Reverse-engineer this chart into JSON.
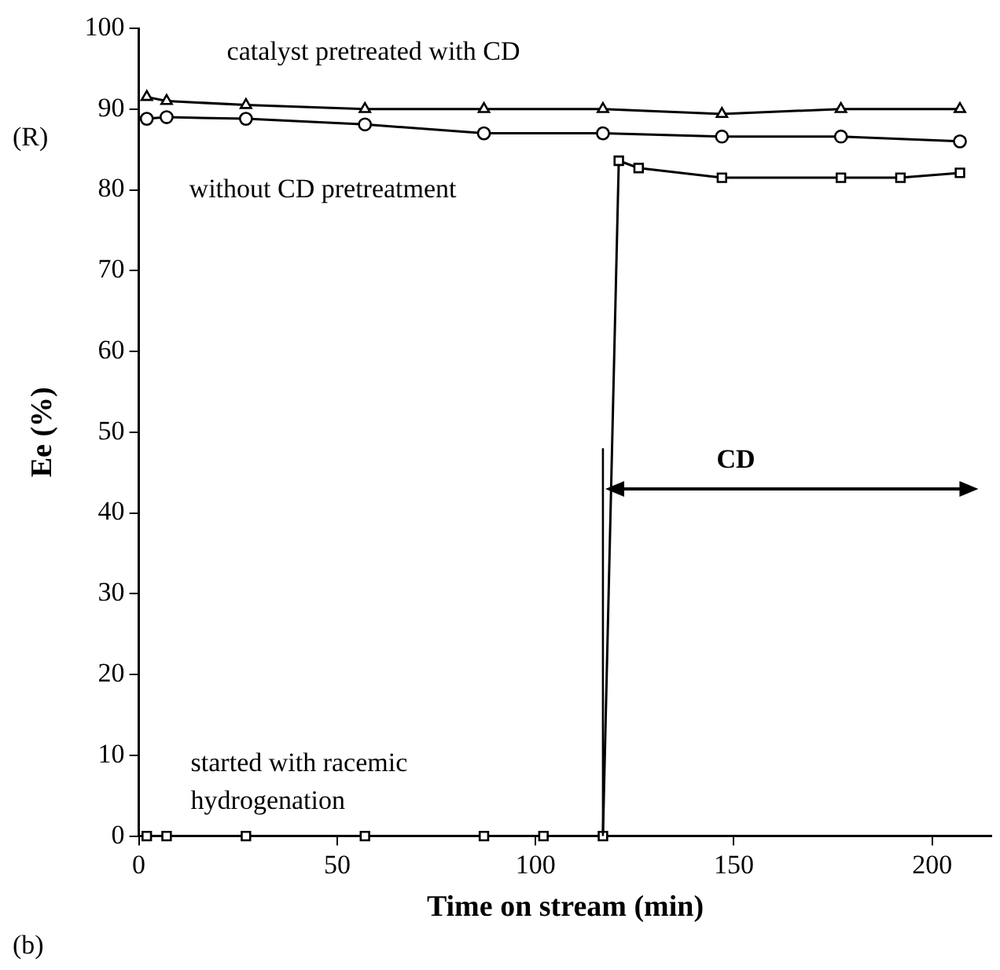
{
  "chart_data": {
    "type": "line",
    "xlabel": "Time on stream (min)",
    "ylabel": "Ee (%)",
    "xlim": [
      0,
      215
    ],
    "xticks": [
      0,
      50,
      100,
      150,
      200
    ],
    "ylim": [
      0,
      100
    ],
    "yticks": [
      0,
      10,
      20,
      30,
      40,
      50,
      60,
      70,
      80,
      90,
      100
    ],
    "grid": false,
    "legend": false,
    "line_style": "solid",
    "series": [
      {
        "name": "catalyst pretreated with CD",
        "color": "#000000",
        "marker": "triangle",
        "x": [
          2,
          7,
          27,
          57,
          87,
          117,
          147,
          177,
          207
        ],
        "values": [
          91.5,
          91.0,
          90.5,
          90.0,
          90.0,
          90.0,
          89.4,
          90.0,
          90.0
        ]
      },
      {
        "name": "without CD pretreatment",
        "color": "#000000",
        "marker": "circle",
        "x": [
          2,
          7,
          27,
          57,
          87,
          117,
          147,
          177,
          207
        ],
        "values": [
          88.8,
          89.0,
          88.8,
          88.1,
          87.0,
          87.0,
          86.6,
          86.6,
          86.0
        ]
      },
      {
        "name": "started with racemic hydrogenation",
        "color": "#000000",
        "marker": "square",
        "x": [
          2,
          7,
          27,
          57,
          87,
          102,
          117,
          121,
          126,
          147,
          177,
          192,
          207
        ],
        "values": [
          0,
          0,
          0,
          0,
          0,
          0,
          0,
          83.6,
          82.7,
          81.5,
          81.5,
          81.5,
          82.1
        ]
      }
    ],
    "ref_lines": [
      {
        "axis": "x",
        "value": 117
      }
    ],
    "annotations": [
      "(R)",
      "(b)",
      "CD"
    ]
  }
}
